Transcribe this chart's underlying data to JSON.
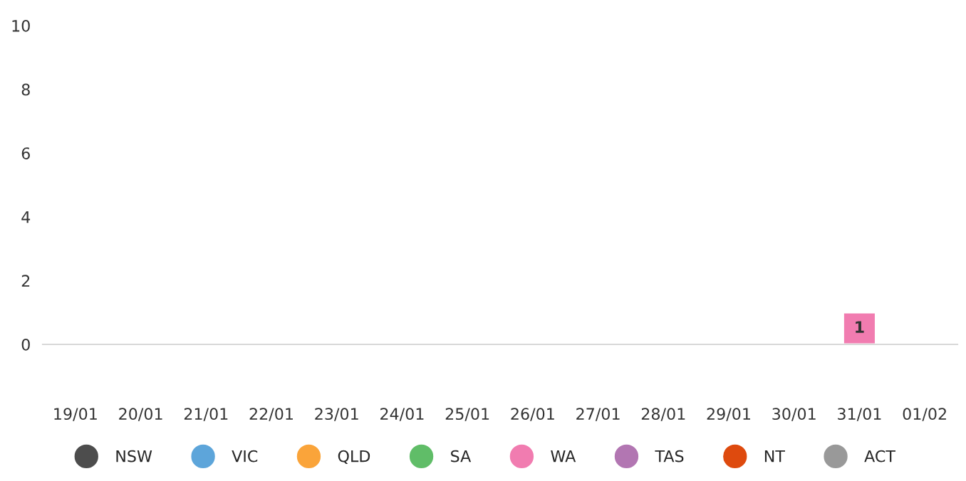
{
  "chart_data": {
    "type": "bar",
    "stacked": true,
    "categories": [
      "19/01",
      "20/01",
      "21/01",
      "22/01",
      "23/01",
      "24/01",
      "25/01",
      "26/01",
      "27/01",
      "28/01",
      "29/01",
      "30/01",
      "31/01",
      "01/02"
    ],
    "series": [
      {
        "name": "NSW",
        "color": "#4d4d4d",
        "values": [
          null,
          null,
          null,
          null,
          null,
          null,
          null,
          null,
          null,
          null,
          null,
          null,
          null,
          null
        ]
      },
      {
        "name": "VIC",
        "color": "#5da5da",
        "values": [
          null,
          null,
          null,
          null,
          null,
          null,
          null,
          null,
          null,
          null,
          null,
          null,
          null,
          null
        ]
      },
      {
        "name": "QLD",
        "color": "#faa43a",
        "values": [
          null,
          null,
          null,
          null,
          null,
          null,
          null,
          null,
          null,
          null,
          null,
          null,
          null,
          null
        ]
      },
      {
        "name": "SA",
        "color": "#60bd68",
        "values": [
          null,
          null,
          null,
          null,
          null,
          null,
          null,
          null,
          null,
          null,
          null,
          null,
          null,
          null
        ]
      },
      {
        "name": "WA",
        "color": "#f17cb0",
        "values": [
          null,
          null,
          null,
          null,
          null,
          null,
          null,
          null,
          null,
          null,
          null,
          null,
          1,
          null
        ],
        "value_labels": [
          null,
          null,
          null,
          null,
          null,
          null,
          null,
          null,
          null,
          null,
          null,
          null,
          "1",
          null
        ]
      },
      {
        "name": "TAS",
        "color": "#b276b2",
        "values": [
          null,
          null,
          null,
          null,
          null,
          null,
          null,
          null,
          null,
          null,
          null,
          null,
          null,
          null
        ]
      },
      {
        "name": "NT",
        "color": "#de4a0e",
        "values": [
          null,
          null,
          null,
          null,
          null,
          null,
          null,
          null,
          null,
          null,
          null,
          null,
          null,
          null
        ]
      },
      {
        "name": "ACT",
        "color": "#999999",
        "values": [
          null,
          null,
          null,
          null,
          null,
          null,
          null,
          null,
          null,
          null,
          null,
          null,
          null,
          null
        ]
      }
    ],
    "ylim": [
      0,
      10
    ],
    "yticks": [
      0,
      2,
      4,
      6,
      8,
      10
    ],
    "grid": false,
    "legend": "bottom"
  }
}
